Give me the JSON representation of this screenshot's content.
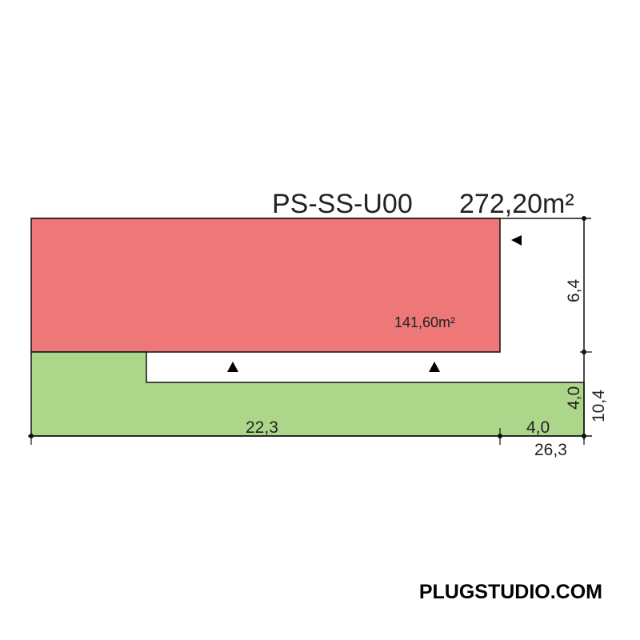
{
  "plan": {
    "code": "PS-SS-U00",
    "total_area": "272,20m²",
    "red_area": "141,60m²",
    "colors": {
      "red_zone": "#ee7878",
      "green_zone": "#acd68a",
      "line": "#111111"
    },
    "dimensions": {
      "left_width": "22,3",
      "right_width": "4,0",
      "total_width": "26,3",
      "upper_height": "6,4",
      "lower_height": "4,0",
      "total_height": "10,4"
    },
    "entrance_icon": "triangle-marker-icon"
  },
  "brand": {
    "logo_text": "PLUGSTUDIO.COM"
  }
}
